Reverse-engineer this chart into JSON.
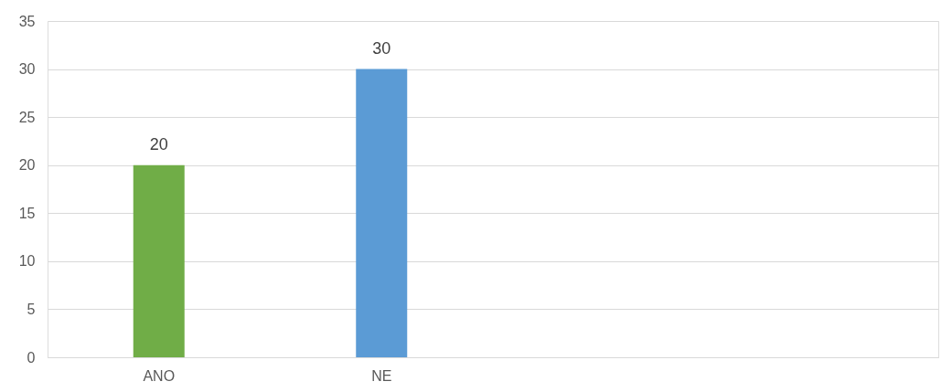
{
  "chart_data": {
    "type": "bar",
    "categories": [
      "ANO",
      "NE",
      null,
      null
    ],
    "values": [
      20,
      30,
      null,
      null
    ],
    "colors": [
      "#70ad47",
      "#5b9bd5",
      null,
      null
    ],
    "ylim": [
      0,
      35
    ],
    "yticks": [
      0,
      5,
      10,
      15,
      20,
      25,
      30,
      35
    ],
    "grid": "y",
    "data_labels": true
  }
}
